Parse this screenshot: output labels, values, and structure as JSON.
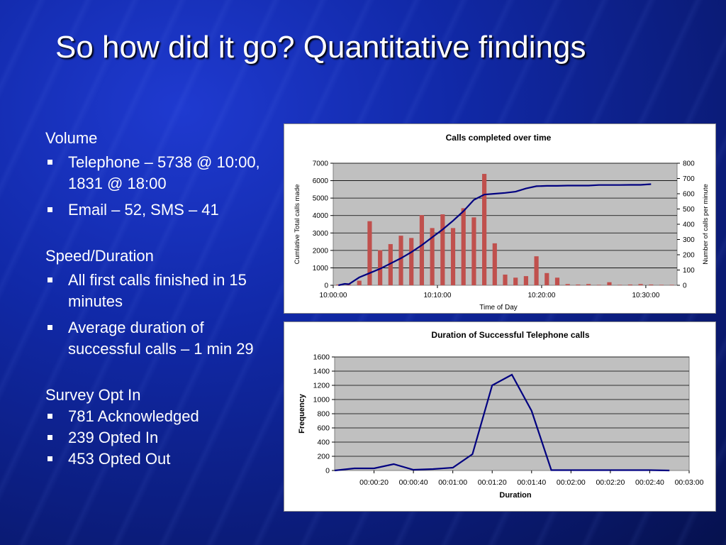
{
  "slide": {
    "title": "So how did it go? Quantitative findings",
    "sections": [
      {
        "heading": "Volume",
        "bullets": [
          "Telephone – 5738 @ 10:00, 1831 @ 18:00",
          "Email – 52, SMS – 41"
        ]
      },
      {
        "heading": "Speed/Duration",
        "bullets": [
          "All first calls finished in 15 minutes",
          "Average duration of successful calls – 1 min 29"
        ]
      },
      {
        "heading": "Survey Opt In",
        "bullets": [
          "781 Acknowledged",
          "239 Opted In",
          "453 Opted Out"
        ]
      }
    ],
    "colors": {
      "bar": "#c0504d",
      "line": "#000080",
      "plot_bg": "#c0c0c0"
    }
  },
  "chart_data": [
    {
      "type": "bar",
      "title": "Calls completed over time",
      "xlabel": "Time of Day",
      "ylabel": "Cumlative Total calls made",
      "ylabel_right": "Number of calls per minute",
      "x_ticks": [
        "10:00:00",
        "10:10:00",
        "10:20:00",
        "10:30:00"
      ],
      "xlim": [
        0,
        33
      ],
      "ylim": [
        0,
        7000
      ],
      "ylim_right": [
        0,
        800
      ],
      "y_ticks": [
        0,
        1000,
        2000,
        3000,
        4000,
        5000,
        6000,
        7000
      ],
      "y_ticks_right": [
        0,
        100,
        200,
        300,
        400,
        500,
        600,
        700,
        800
      ],
      "grid": true,
      "series": [
        {
          "kind": "bar",
          "axis": "right",
          "x": [
            0,
            1,
            2,
            3,
            4,
            5,
            6,
            7,
            8,
            9,
            10,
            11,
            12,
            13,
            14,
            15,
            16,
            17,
            18,
            19,
            20,
            21,
            22,
            23,
            24,
            25,
            26,
            27,
            28,
            29,
            30,
            31,
            32
          ],
          "values": [
            5,
            5,
            30,
            420,
            230,
            270,
            325,
            310,
            460,
            375,
            465,
            375,
            505,
            445,
            730,
            275,
            70,
            50,
            60,
            190,
            80,
            50,
            8,
            5,
            8,
            3,
            20,
            3,
            5,
            8,
            5,
            3,
            3
          ]
        },
        {
          "kind": "line",
          "axis": "left",
          "x": [
            0,
            0.6,
            1,
            2,
            3,
            4,
            5,
            6,
            7,
            8,
            9,
            10,
            11,
            12,
            13,
            14,
            15,
            16,
            17,
            18,
            19,
            20,
            21,
            22,
            23,
            24,
            25,
            26,
            27,
            28,
            29,
            30
          ],
          "values": [
            0,
            80,
            60,
            450,
            700,
            950,
            1250,
            1550,
            1900,
            2300,
            2750,
            3200,
            3700,
            4250,
            4900,
            5200,
            5250,
            5300,
            5370,
            5550,
            5680,
            5700,
            5700,
            5720,
            5720,
            5720,
            5750,
            5750,
            5750,
            5760,
            5760,
            5800
          ]
        }
      ]
    },
    {
      "type": "line",
      "title": "Duration of Successful Telephone calls",
      "xlabel": "Duration",
      "ylabel": "Frequency",
      "x_ticks": [
        "00:00:20",
        "00:00:40",
        "00:01:00",
        "00:01:20",
        "00:01:40",
        "00:02:00",
        "00:02:20",
        "00:02:40",
        "00:03:00"
      ],
      "xlim": [
        0,
        180
      ],
      "ylim": [
        0,
        1600
      ],
      "y_ticks": [
        0,
        200,
        400,
        600,
        800,
        1000,
        1200,
        1400,
        1600
      ],
      "grid": true,
      "series": [
        {
          "x": [
            0,
            10,
            20,
            30,
            40,
            50,
            60,
            70,
            80,
            90,
            100,
            110,
            120,
            130,
            140,
            150,
            160,
            170
          ],
          "values": [
            0,
            30,
            30,
            90,
            10,
            20,
            40,
            230,
            1200,
            1350,
            840,
            5,
            5,
            5,
            5,
            5,
            5,
            0
          ]
        }
      ]
    }
  ]
}
